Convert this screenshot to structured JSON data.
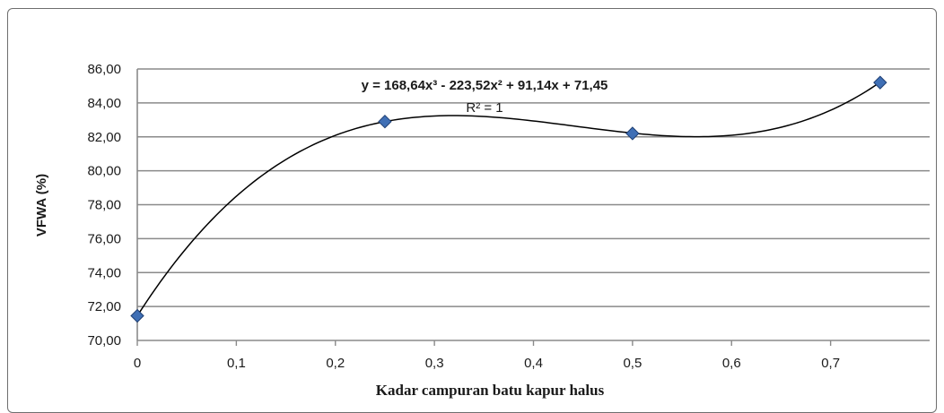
{
  "chart_data": {
    "type": "scatter",
    "ylabel": "VFWA (%)",
    "xlabel": "Kadar campuran batu kapur halus",
    "y_ticks": [
      "70,00",
      "72,00",
      "74,00",
      "76,00",
      "78,00",
      "80,00",
      "82,00",
      "84,00",
      "86,00"
    ],
    "x_ticks": [
      "0",
      "0,1",
      "0,2",
      "0,3",
      "0,4",
      "0,5",
      "0,6",
      "0,7"
    ],
    "xlim": [
      0,
      0.8
    ],
    "ylim": [
      70,
      86
    ],
    "grid": "horizontal",
    "series": [
      {
        "x": [
          0,
          0.25,
          0.5,
          0.75
        ],
        "y": [
          71.45,
          82.9,
          82.2,
          85.2
        ],
        "marker": "diamond",
        "color": "#3f6fb5"
      }
    ],
    "trendline": {
      "type": "polynomial-3",
      "coefficients": [
        168.64,
        -223.52,
        91.14,
        71.45
      ],
      "equation": "y = 168,64x³ - 223,52x² + 91,14x + 71,45",
      "r_squared": "R² = 1"
    }
  }
}
